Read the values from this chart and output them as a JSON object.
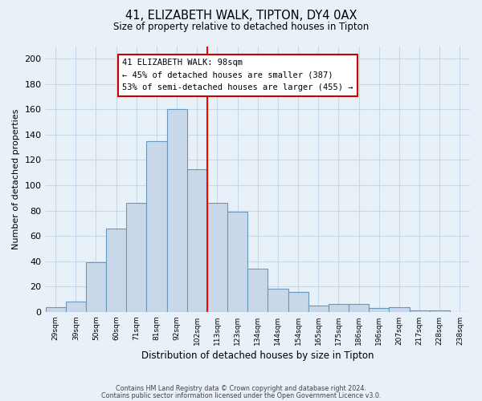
{
  "title_line1": "41, ELIZABETH WALK, TIPTON, DY4 0AX",
  "title_line2": "Size of property relative to detached houses in Tipton",
  "xlabel": "Distribution of detached houses by size in Tipton",
  "ylabel": "Number of detached properties",
  "bin_labels": [
    "29sqm",
    "39sqm",
    "50sqm",
    "60sqm",
    "71sqm",
    "81sqm",
    "92sqm",
    "102sqm",
    "113sqm",
    "123sqm",
    "134sqm",
    "144sqm",
    "154sqm",
    "165sqm",
    "175sqm",
    "186sqm",
    "196sqm",
    "207sqm",
    "217sqm",
    "228sqm",
    "238sqm"
  ],
  "bar_heights": [
    4,
    8,
    39,
    66,
    86,
    135,
    160,
    113,
    86,
    79,
    34,
    18,
    16,
    5,
    6,
    6,
    3,
    4,
    1,
    1,
    0
  ],
  "bar_color": "#c8d8e8",
  "bar_edge_color": "#6699bb",
  "vline_x": 7.5,
  "vline_color": "red",
  "annotation_title": "41 ELIZABETH WALK: 98sqm",
  "annotation_line1": "← 45% of detached houses are smaller (387)",
  "annotation_line2": "53% of semi-detached houses are larger (455) →",
  "annotation_box_color": "#ffffff",
  "annotation_box_edge": "#cc0000",
  "ylim": [
    0,
    210
  ],
  "yticks": [
    0,
    20,
    40,
    60,
    80,
    100,
    120,
    140,
    160,
    180,
    200
  ],
  "grid_color": "#c8d8ec",
  "background_color": "#e8f0f8",
  "footer_line1": "Contains HM Land Registry data © Crown copyright and database right 2024.",
  "footer_line2": "Contains public sector information licensed under the Open Government Licence v3.0."
}
